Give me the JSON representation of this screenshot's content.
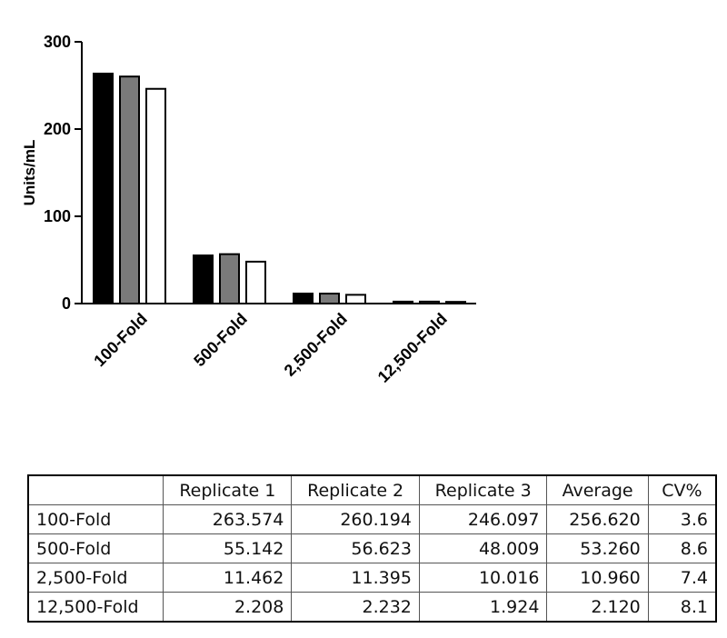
{
  "chart_data": {
    "type": "bar",
    "ylabel": "Units/mL",
    "xlabel": "",
    "ylim": [
      0,
      300
    ],
    "yticks": [
      0,
      100,
      200,
      300
    ],
    "categories": [
      "100-Fold",
      "500-Fold",
      "2,500-Fold",
      "12,500-Fold"
    ],
    "series": [
      {
        "values": [
          263.574,
          55.142,
          11.462,
          2.208
        ],
        "color": "#000000"
      },
      {
        "values": [
          260.194,
          56.623,
          11.395,
          2.232
        ],
        "color": "#7a7a7a"
      },
      {
        "values": [
          246.097,
          48.009,
          10.016,
          1.924
        ],
        "color": "#ffffff"
      }
    ],
    "grid": false,
    "legend": "none"
  },
  "table": {
    "header": [
      "",
      "Replicate 1",
      "Replicate 2",
      "Replicate 3",
      "Average",
      "CV%"
    ],
    "rows": [
      [
        "100-Fold",
        "263.574",
        "260.194",
        "246.097",
        "256.620",
        "3.6"
      ],
      [
        "500-Fold",
        "55.142",
        "56.623",
        "48.009",
        "53.260",
        "8.6"
      ],
      [
        "2,500-Fold",
        "11.462",
        "11.395",
        "10.016",
        "10.960",
        "7.4"
      ],
      [
        "12,500-Fold",
        "2.208",
        "2.232",
        "1.924",
        "2.120",
        "8.1"
      ]
    ]
  }
}
